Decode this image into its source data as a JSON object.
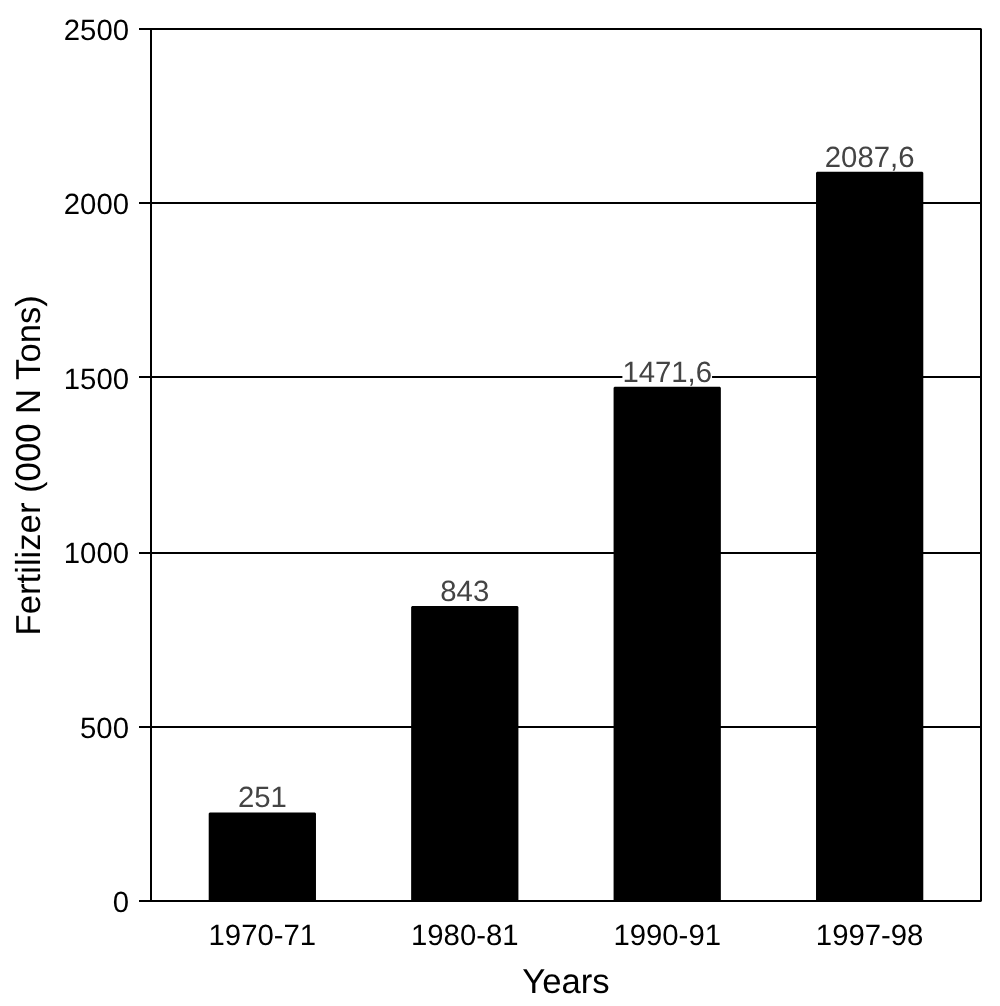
{
  "chart_data": {
    "type": "bar",
    "xlabel": "Years",
    "ylabel": "Fertilizer (000 N Tons)",
    "categories": [
      "1970-71",
      "1980-81",
      "1990-91",
      "1997-98"
    ],
    "values": [
      251,
      843,
      1471.6,
      2087.6
    ],
    "value_labels": [
      "251",
      "843",
      "1471,6",
      "2087,6"
    ],
    "color": "#000000",
    "ylim": [
      0,
      2500
    ],
    "yticks": [
      0,
      500,
      1000,
      1500,
      2000,
      2500
    ],
    "grid": "y"
  }
}
